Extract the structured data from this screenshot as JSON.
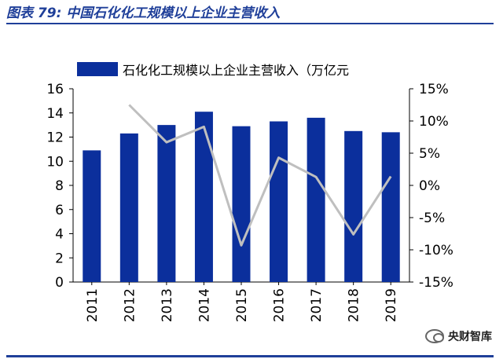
{
  "figure": {
    "title": "图表 79:  中国石化化工规模以上企业主营收入"
  },
  "watermark": {
    "text": "央财智库",
    "icon": "wechat-icon"
  },
  "colors": {
    "bar": "#0b2f9c",
    "line": "#bfbfbf",
    "title": "#1f3f99",
    "text": "#000000"
  },
  "chart_data": {
    "type": "bar",
    "categories": [
      "2011",
      "2012",
      "2013",
      "2014",
      "2015",
      "2016",
      "2017",
      "2018",
      "2019"
    ],
    "series": [
      {
        "name": "石化化工规模以上企业主营收入（万亿元",
        "type": "bar",
        "axis": "left",
        "values": [
          10.9,
          12.3,
          13.0,
          14.1,
          12.9,
          13.3,
          13.6,
          12.5,
          12.4
        ]
      },
      {
        "name": "",
        "type": "line",
        "axis": "right",
        "values": [
          null,
          12.5,
          6.7,
          9.1,
          -9.3,
          4.3,
          1.3,
          -7.6,
          1.4
        ]
      }
    ],
    "left_axis": {
      "ylim": [
        0,
        16
      ],
      "ticks": [
        "0",
        "2",
        "4",
        "6",
        "8",
        "10",
        "12",
        "14",
        "16"
      ]
    },
    "right_axis": {
      "ylim": [
        -15,
        15
      ],
      "ticks": [
        "-15%",
        "-10%",
        "-5%",
        "0%",
        "5%",
        "10%",
        "15%"
      ]
    },
    "legend": {
      "placement": "top",
      "label": "石化化工规模以上企业主营收入（万亿元"
    },
    "grid": false
  }
}
